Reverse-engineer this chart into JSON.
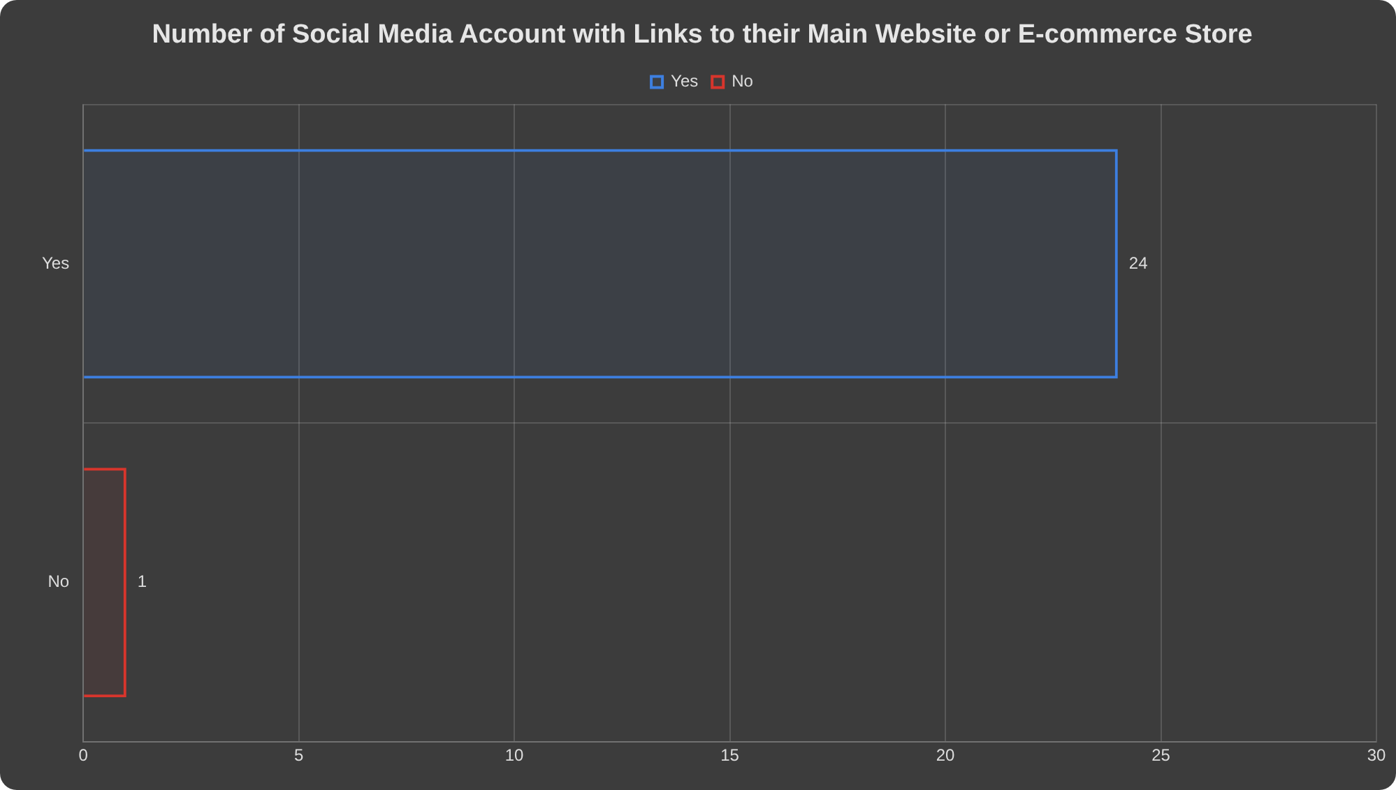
{
  "chart_data": {
    "type": "bar",
    "orientation": "horizontal",
    "title": "Number of Social Media Account with Links to their Main Website or E-commerce Store",
    "categories": [
      "Yes",
      "No"
    ],
    "series": [
      {
        "name": "Yes",
        "color": "#3d7fe0",
        "values": [
          24,
          null
        ]
      },
      {
        "name": "No",
        "color": "#d8352c",
        "values": [
          null,
          1
        ]
      }
    ],
    "xlim": [
      0,
      30
    ],
    "xticks": [
      0,
      5,
      10,
      15,
      20,
      25,
      30
    ],
    "grid": true,
    "legend": "top",
    "data_labels": true
  }
}
